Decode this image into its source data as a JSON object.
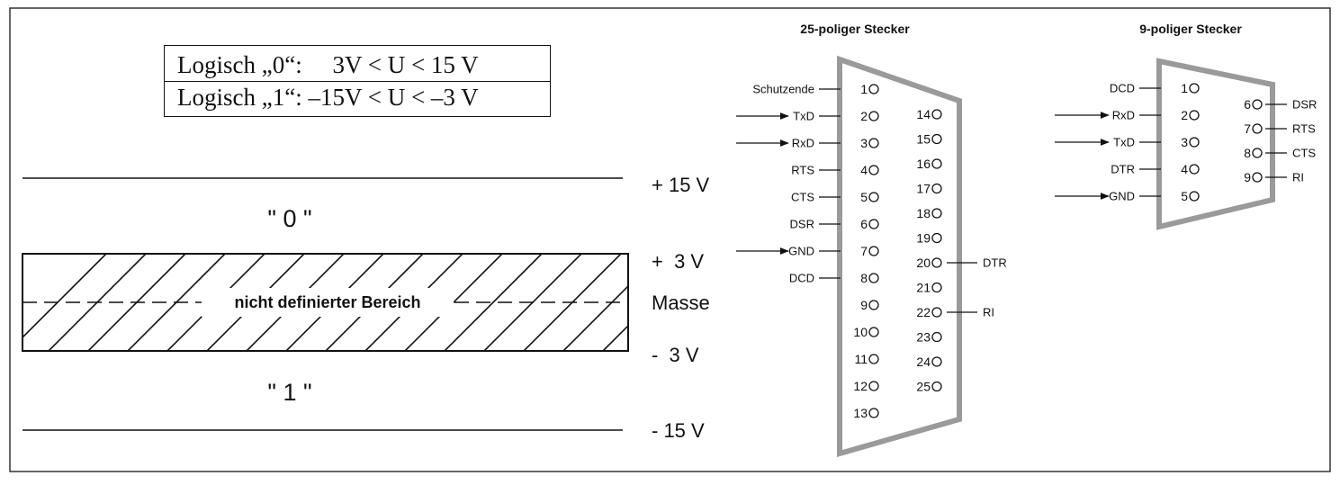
{
  "legend": {
    "line0": "Logisch „0“:     3V < U < 15 V",
    "line1": "Logisch „1“: –15V < U < –3 V"
  },
  "levels": {
    "plus15": "+ 15 V",
    "plus3": "+  3 V",
    "masse": "Masse",
    "minus3": "-  3 V",
    "minus15": "- 15 V"
  },
  "zones": {
    "zero": "\" 0 \"",
    "one": "\" 1 \"",
    "undefined": "nicht definierter Bereich"
  },
  "connector25": {
    "title": "25-poliger Stecker",
    "left_pins": [
      "1",
      "2",
      "3",
      "4",
      "5",
      "6",
      "7",
      "8",
      "9",
      "10",
      "11",
      "12",
      "13"
    ],
    "right_pins": [
      "14",
      "15",
      "16",
      "17",
      "18",
      "19",
      "20",
      "21",
      "22",
      "23",
      "24",
      "25"
    ],
    "left_signals": [
      {
        "pin": "1",
        "label": "Schutzende",
        "arrow": false
      },
      {
        "pin": "2",
        "label": "TxD",
        "arrow": true
      },
      {
        "pin": "3",
        "label": "RxD",
        "arrow": true
      },
      {
        "pin": "4",
        "label": "RTS",
        "arrow": false
      },
      {
        "pin": "5",
        "label": "CTS",
        "arrow": false
      },
      {
        "pin": "6",
        "label": "DSR",
        "arrow": false
      },
      {
        "pin": "7",
        "label": "GND",
        "arrow": true
      },
      {
        "pin": "8",
        "label": "DCD",
        "arrow": false
      }
    ],
    "right_signals": [
      {
        "pin": "20",
        "label": "DTR"
      },
      {
        "pin": "22",
        "label": "RI"
      }
    ]
  },
  "connector9": {
    "title": "9-poliger Stecker",
    "left_pins": [
      "1",
      "2",
      "3",
      "4",
      "5"
    ],
    "right_pins": [
      "6",
      "7",
      "8",
      "9"
    ],
    "left_signals": [
      {
        "pin": "1",
        "label": "DCD",
        "arrow": false
      },
      {
        "pin": "2",
        "label": "RxD",
        "arrow": true
      },
      {
        "pin": "3",
        "label": "TxD",
        "arrow": true
      },
      {
        "pin": "4",
        "label": "DTR",
        "arrow": false
      },
      {
        "pin": "5",
        "label": "GND",
        "arrow": true
      }
    ],
    "right_signals": [
      {
        "pin": "6",
        "label": "DSR"
      },
      {
        "pin": "7",
        "label": "RTS"
      },
      {
        "pin": "8",
        "label": "CTS"
      },
      {
        "pin": "9",
        "label": "RI"
      }
    ]
  },
  "colors": {
    "ink": "#111111",
    "connector_outline": "#9a9a9a",
    "frame": "#333333"
  }
}
